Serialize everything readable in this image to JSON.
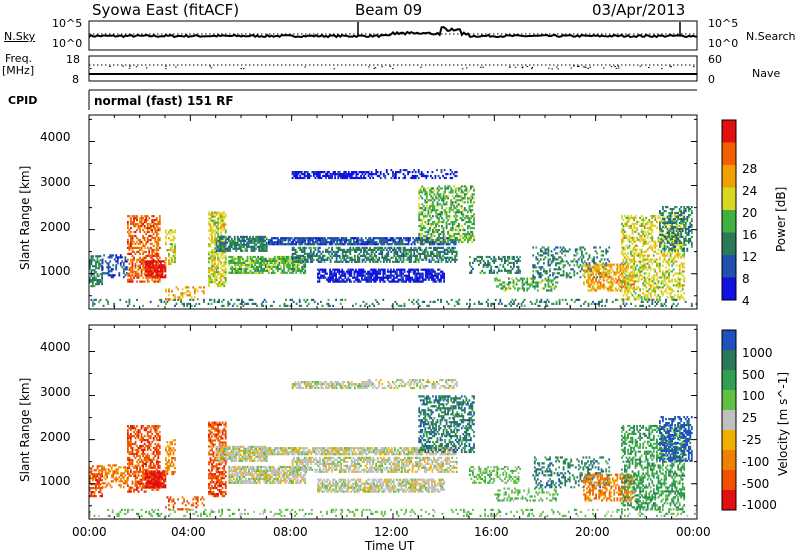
{
  "header": {
    "station": "Syowa East (fitACF)",
    "beam": "Beam 09",
    "date": "03/Apr/2013"
  },
  "noise_panel": {
    "left_label": "N.Sky",
    "left_ticks": [
      "10^5",
      "10^0"
    ],
    "right_ticks": [
      "10^5",
      "10^0"
    ],
    "right_label": "N.Search"
  },
  "freq_panel": {
    "left_label_1": "Freq.",
    "left_label_2": "[MHz]",
    "left_ticks": [
      "18",
      "8"
    ],
    "right_ticks": [
      "60",
      "0"
    ],
    "right_label": "Nave"
  },
  "cpid": {
    "label": "CPID",
    "mode": "normal (fast) 151 RF"
  },
  "x_axis": {
    "ticks": [
      "00:00",
      "04:00",
      "08:00",
      "12:00",
      "16:00",
      "20:00",
      "00:00"
    ],
    "label": "Time UT"
  },
  "chart_data": [
    {
      "type": "heatmap",
      "title": "",
      "xlabel": "Time UT",
      "ylabel": "Slant Range [km]",
      "y_ticks": [
        "1000",
        "2000",
        "3000",
        "4000"
      ],
      "ylim": [
        200,
        4600
      ],
      "xlim_hours": [
        0,
        24
      ],
      "colorbar": {
        "label": "Power [dB]",
        "ticks": [
          "4",
          "8",
          "12",
          "16",
          "20",
          "24",
          "28"
        ],
        "range": [
          0,
          30
        ],
        "colors": [
          "#1010e0",
          "#2050b0",
          "#2a7a5a",
          "#40b040",
          "#d8d820",
          "#f0a000",
          "#f06000",
          "#e01010"
        ]
      }
    },
    {
      "type": "heatmap",
      "title": "",
      "xlabel": "Time UT",
      "ylabel": "Slant Range [km]",
      "y_ticks": [
        "1000",
        "2000",
        "3000",
        "4000"
      ],
      "ylim": [
        200,
        4600
      ],
      "xlim_hours": [
        0,
        24
      ],
      "colorbar": {
        "label": "Velocity [m s^-1]",
        "ticks": [
          "1000",
          "500",
          "100",
          "25",
          "-25",
          "-100",
          "-500",
          "-1000"
        ],
        "colors": [
          "#2050c0",
          "#2a7a5a",
          "#30a050",
          "#60c040",
          "#c0c0c0",
          "#f0b000",
          "#f08000",
          "#f05000",
          "#e01010"
        ]
      }
    }
  ]
}
